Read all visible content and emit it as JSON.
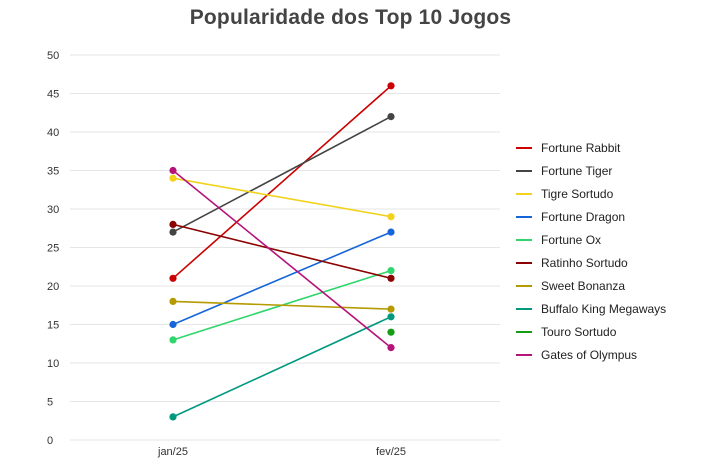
{
  "chart_data": {
    "type": "line",
    "title": "Popularidade dos Top 10 Jogos",
    "xlabel": "",
    "ylabel": "",
    "categories": [
      "jan/25",
      "fev/25"
    ],
    "ylim": [
      0,
      50
    ],
    "yticks": [
      0,
      5,
      10,
      15,
      20,
      25,
      30,
      35,
      40,
      45,
      50
    ],
    "grid": true,
    "legend_position": "right",
    "series": [
      {
        "name": "Fortune Rabbit",
        "color": "#cc0000",
        "values": [
          21,
          46
        ]
      },
      {
        "name": "Fortune Tiger",
        "color": "#444444",
        "values": [
          27,
          42
        ]
      },
      {
        "name": "Tigre Sortudo",
        "color": "#f2d21b",
        "values": [
          34,
          29
        ]
      },
      {
        "name": "Fortune Dragon",
        "color": "#1565d8",
        "values": [
          15,
          27
        ]
      },
      {
        "name": "Fortune Ox",
        "color": "#2ed66b",
        "values": [
          13,
          22
        ]
      },
      {
        "name": "Ratinho Sortudo",
        "color": "#8b0000",
        "values": [
          28,
          21
        ]
      },
      {
        "name": "Sweet Bonanza",
        "color": "#b59a00",
        "values": [
          18,
          17
        ]
      },
      {
        "name": "Buffalo King Megaways",
        "color": "#009980",
        "values": [
          3,
          16
        ]
      },
      {
        "name": "Touro Sortudo",
        "color": "#159c15",
        "values": [
          null,
          14
        ]
      },
      {
        "name": "Gates of Olympus",
        "color": "#b5137a",
        "values": [
          35,
          12
        ]
      }
    ]
  }
}
